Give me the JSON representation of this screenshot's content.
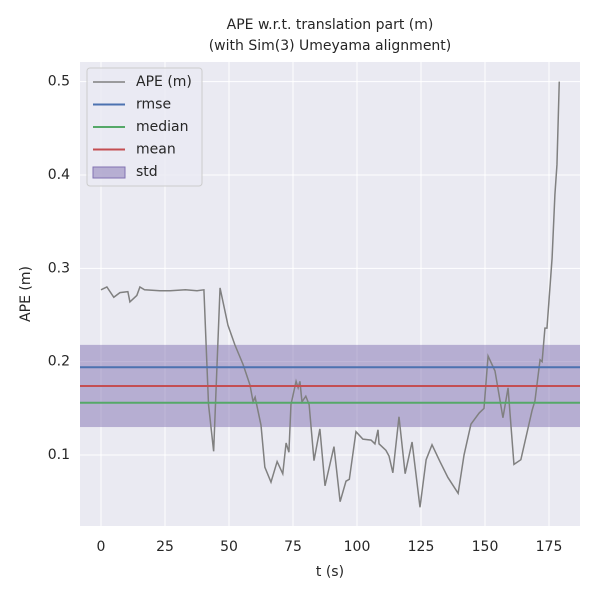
{
  "chart_data": {
    "type": "line",
    "title": "APE w.r.t. translation part (m)",
    "subtitle": "(with Sim(3) Umeyama alignment)",
    "x_label": "t (s)",
    "y_label": "APE (m)",
    "xlim": [
      -8.2,
      187.1
    ],
    "ylim": [
      0.024,
      0.521
    ],
    "xticks": [
      0,
      25,
      50,
      75,
      100,
      125,
      150,
      175
    ],
    "yticks": [
      0.1,
      0.2,
      0.3,
      0.4,
      0.5
    ],
    "grid": true,
    "legend": "upper left",
    "series": [
      {
        "name": "APE (m)",
        "color": "#808080",
        "x": [
          0,
          2.3,
          5,
          7.4,
          10.5,
          11.3,
          14,
          15.2,
          17,
          23,
          27,
          33,
          37.5,
          40.2,
          42,
          44,
          46.5,
          49.6,
          52.3,
          55.5,
          58.2,
          59.4,
          60.2,
          62.5,
          64,
          66.4,
          68.8,
          71,
          72.3,
          73.4,
          74.2,
          76.2,
          77,
          77.7,
          78.5,
          80,
          81.3,
          83.2,
          85.5,
          87.5,
          91,
          93.4,
          95.7,
          97,
          99.6,
          102.3,
          105.5,
          107,
          108.2,
          108.6,
          111.3,
          112.5,
          114,
          116.4,
          118.8,
          121.5,
          124.6,
          127,
          129.3,
          132.4,
          135.5,
          139.5,
          141.8,
          144.5,
          147.7,
          149.6,
          151.2,
          153.9,
          157,
          159,
          161.3,
          164,
          168.4,
          169.5,
          171.5,
          172.3,
          173.4,
          174.2,
          175,
          176.2,
          177.3,
          178.1,
          179
        ],
        "values": [
          0.277,
          0.28,
          0.269,
          0.274,
          0.275,
          0.264,
          0.271,
          0.28,
          0.277,
          0.276,
          0.276,
          0.277,
          0.276,
          0.277,
          0.154,
          0.104,
          0.279,
          0.239,
          0.218,
          0.197,
          0.175,
          0.157,
          0.162,
          0.132,
          0.087,
          0.071,
          0.093,
          0.08,
          0.113,
          0.103,
          0.154,
          0.179,
          0.172,
          0.179,
          0.157,
          0.163,
          0.154,
          0.094,
          0.128,
          0.067,
          0.109,
          0.05,
          0.072,
          0.074,
          0.125,
          0.117,
          0.116,
          0.112,
          0.127,
          0.112,
          0.105,
          0.099,
          0.081,
          0.141,
          0.08,
          0.114,
          0.044,
          0.095,
          0.111,
          0.093,
          0.076,
          0.059,
          0.1,
          0.133,
          0.145,
          0.15,
          0.206,
          0.19,
          0.14,
          0.172,
          0.09,
          0.095,
          0.148,
          0.158,
          0.202,
          0.2,
          0.236,
          0.236,
          0.266,
          0.311,
          0.379,
          0.411,
          0.5
        ]
      }
    ],
    "stats": [
      {
        "name": "rmse",
        "value": 0.194,
        "color": "#4c72b0"
      },
      {
        "name": "median",
        "value": 0.156,
        "color": "#55a868"
      },
      {
        "name": "mean",
        "value": 0.174,
        "color": "#c44e52"
      }
    ],
    "std": {
      "name": "std",
      "value": 0.044,
      "color": "#8172b2"
    }
  }
}
